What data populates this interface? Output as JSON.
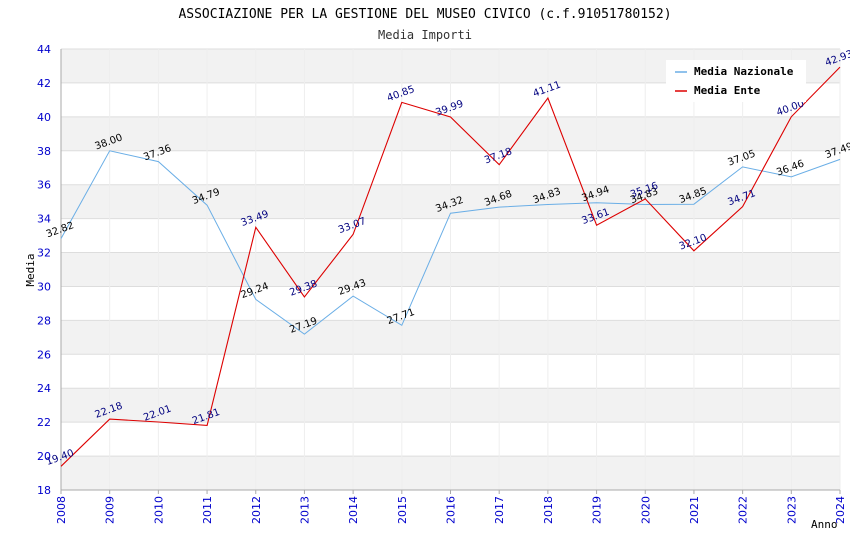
{
  "chart_data": {
    "type": "line",
    "title": "ASSOCIAZIONE PER LA GESTIONE DEL MUSEO CIVICO (c.f.91051780152)",
    "subtitle": "Media Importi",
    "xlabel": "Anno",
    "ylabel": "Media",
    "ylim": [
      18,
      44
    ],
    "yticks": [
      "18",
      "20",
      "22",
      "24",
      "26",
      "28",
      "30",
      "32",
      "34",
      "36",
      "38",
      "40",
      "42",
      "44"
    ],
    "categories": [
      "2008",
      "2009",
      "2010",
      "2011",
      "2012",
      "2013",
      "2014",
      "2015",
      "2016",
      "2017",
      "2018",
      "2019",
      "2020",
      "2021",
      "2022",
      "2023",
      "2024"
    ],
    "legend_position": "top-right",
    "series": [
      {
        "name": "Media Nazionale",
        "color": "#6aaee6",
        "values": [
          32.82,
          38.0,
          37.36,
          34.79,
          29.24,
          27.19,
          29.43,
          27.71,
          34.32,
          34.68,
          34.83,
          34.94,
          34.83,
          34.85,
          37.05,
          36.46,
          37.49
        ],
        "labels": [
          "32.82",
          "38.00",
          "37.36",
          "34.79",
          "29.24",
          "27.19",
          "29.43",
          "27.71",
          "34.32",
          "34.68",
          "34.83",
          "34.94",
          "34.83",
          "34.85",
          "37.05",
          "36.46",
          "37.49"
        ]
      },
      {
        "name": "Media Ente",
        "color": "#dd0000",
        "values": [
          19.4,
          22.18,
          22.01,
          21.81,
          33.49,
          29.38,
          33.07,
          40.85,
          39.99,
          37.18,
          41.11,
          33.61,
          35.16,
          32.1,
          34.71,
          40.0,
          42.93
        ],
        "labels": [
          "19.40",
          "22.18",
          "22.01",
          "21.81",
          "33.49",
          "29.38",
          "33.07",
          "40.85",
          "39.99",
          "37.18",
          "41.11",
          "33.61",
          "35.16",
          "32.10",
          "34.71",
          "40.00",
          "42.93"
        ]
      }
    ]
  }
}
